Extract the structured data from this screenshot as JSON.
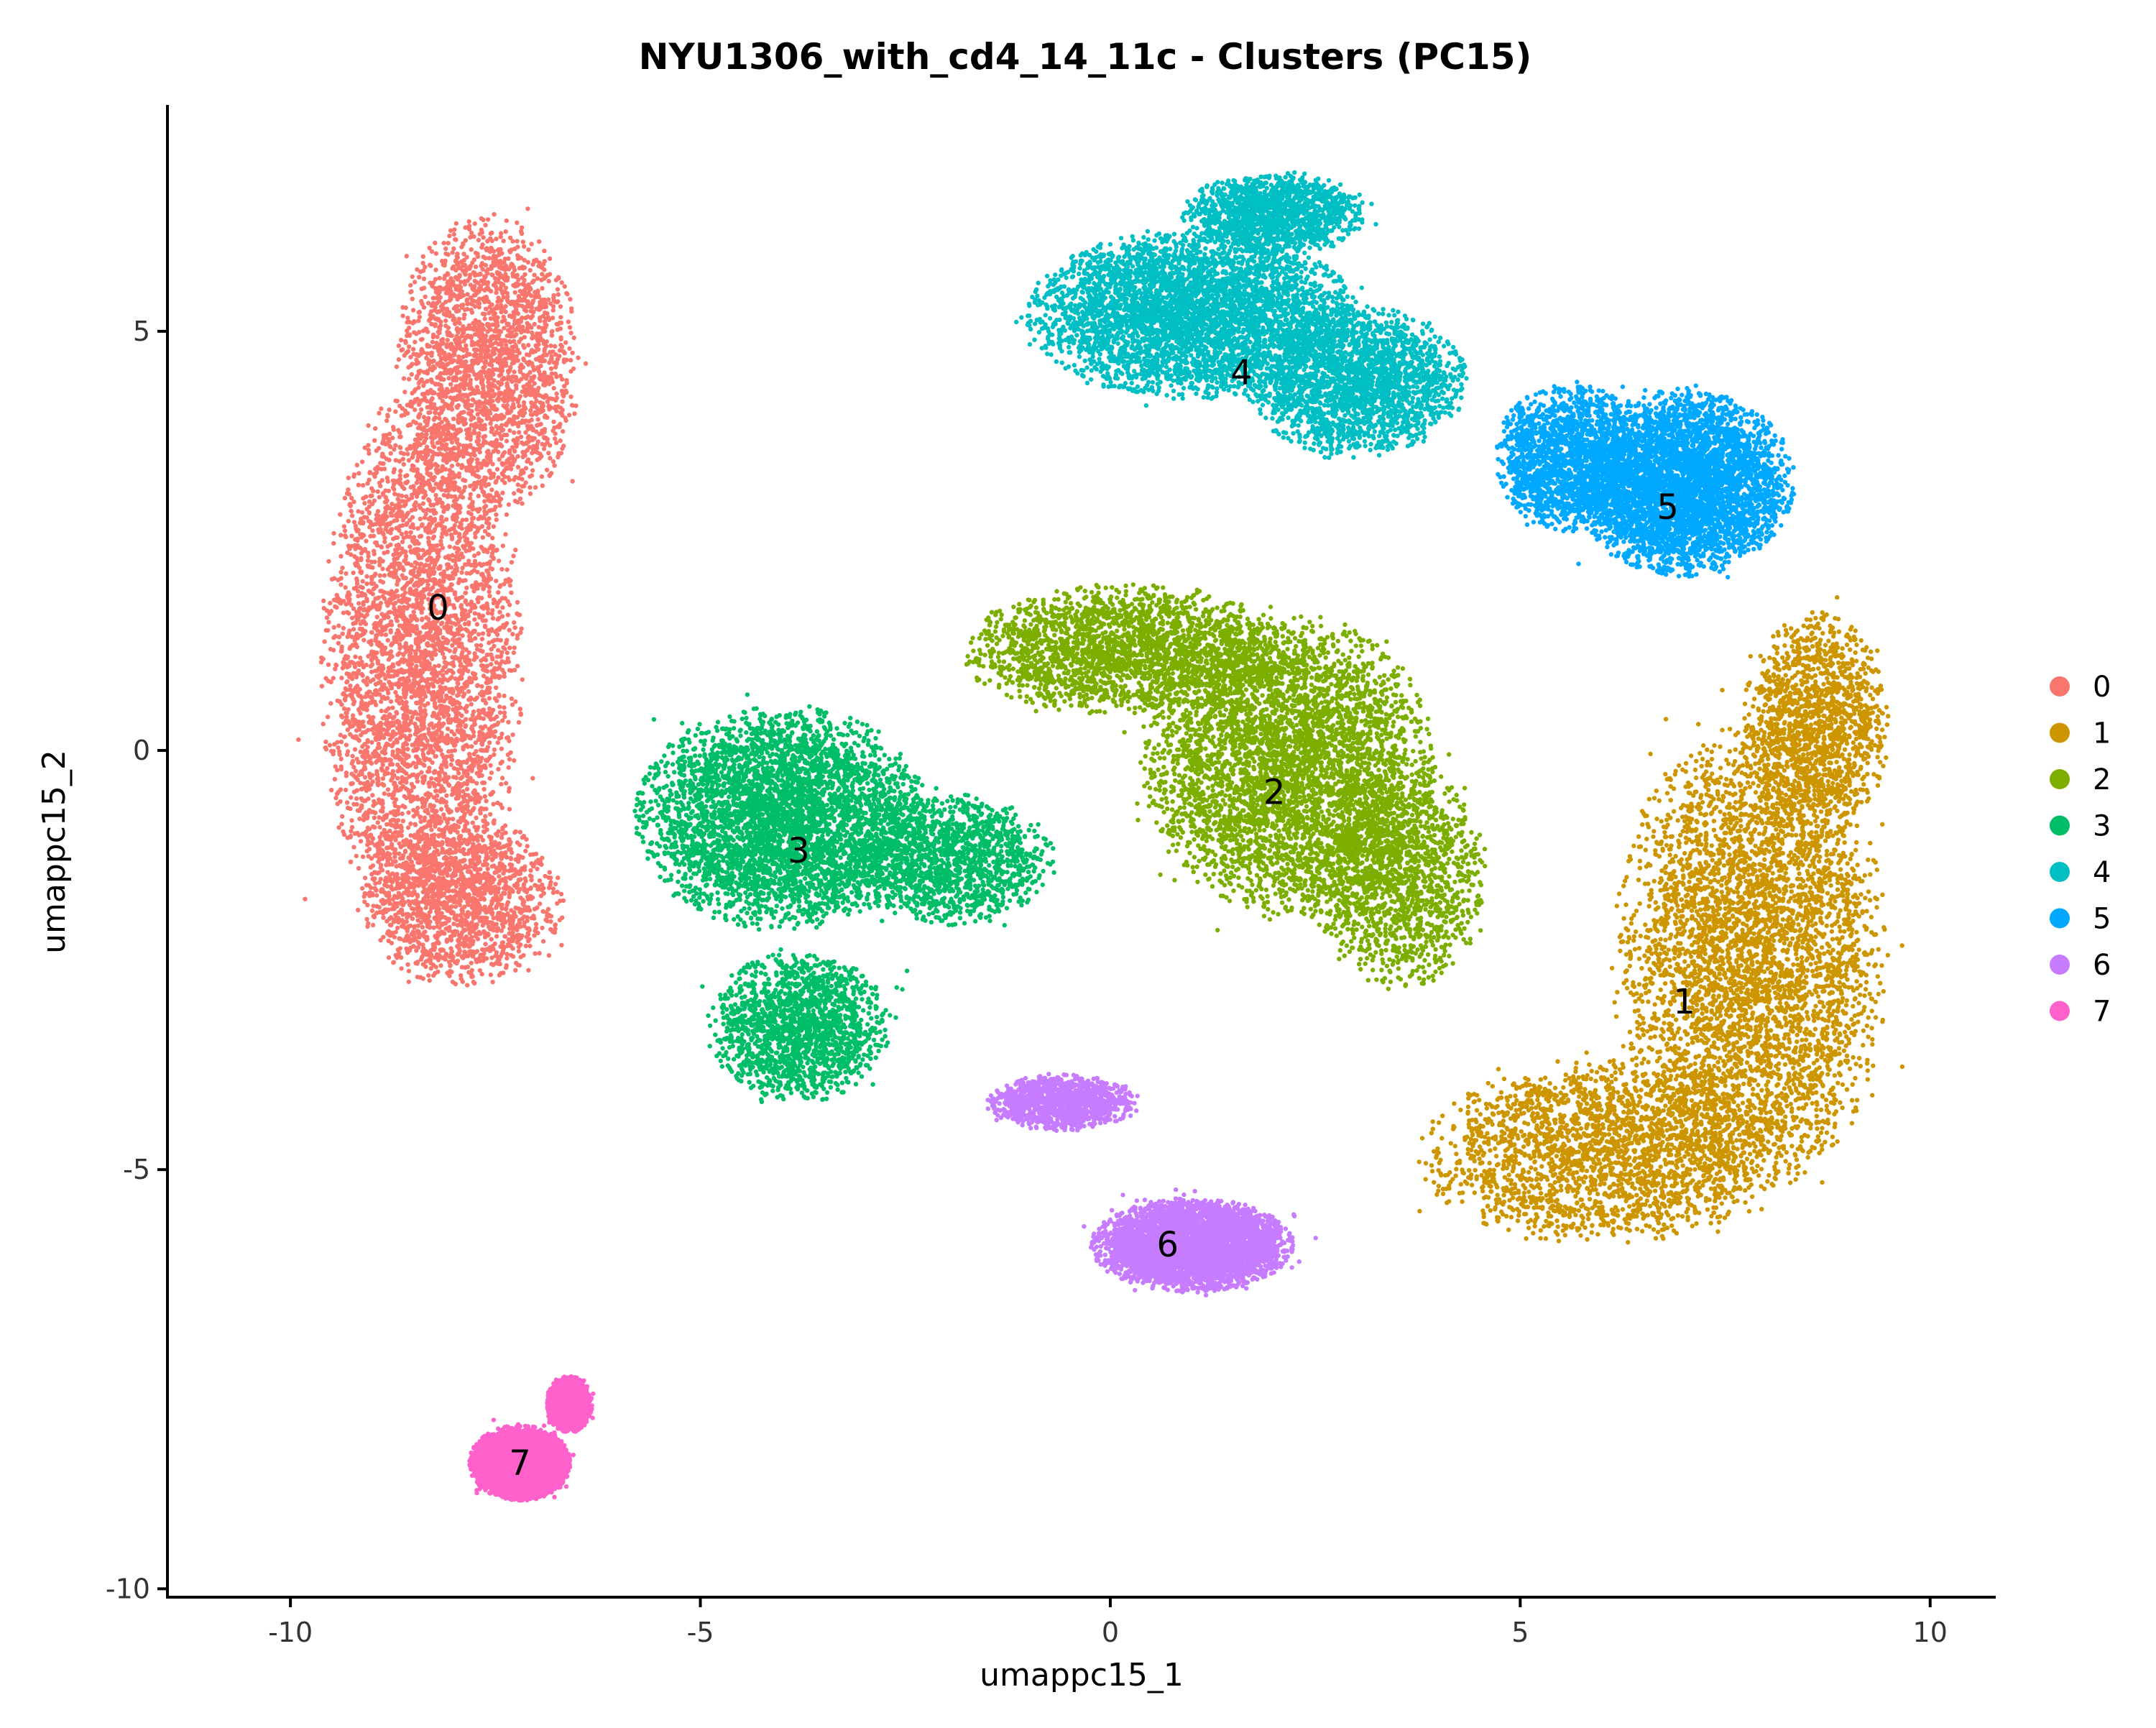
{
  "chart_data": {
    "type": "scatter",
    "title": "NYU1306_with_cd4_14_11c - Clusters (PC15)",
    "xlabel": "umappc15_1",
    "ylabel": "umappc15_2",
    "xlim": [
      -11.5,
      10.8
    ],
    "ylim": [
      -10.1,
      7.7
    ],
    "xticks": [
      -10,
      -5,
      0,
      5,
      10
    ],
    "yticks": [
      -10,
      -5,
      0,
      5
    ],
    "xtick_labels": [
      "-10",
      "-5",
      "0",
      "5",
      "10"
    ],
    "ytick_labels": [
      "-10",
      "-5",
      "0",
      "5"
    ],
    "grid": false,
    "legend_position": "right",
    "series": [
      {
        "name": "0",
        "color": "#F8766D",
        "label_at": [
          -8.2,
          1.7
        ],
        "blobs": [
          [
            -8.4,
            1.0,
            1.1,
            3.0,
            1.0
          ],
          [
            -7.6,
            4.6,
            1.0,
            1.6,
            0.55
          ],
          [
            -7.9,
            -1.8,
            1.1,
            0.9,
            0.35
          ]
        ]
      },
      {
        "name": "1",
        "color": "#CD9600",
        "label_at": [
          7.0,
          -3.0
        ],
        "blobs": [
          [
            7.8,
            -2.5,
            1.5,
            2.5,
            1.0
          ],
          [
            6.0,
            -4.8,
            2.0,
            1.0,
            0.55
          ],
          [
            8.6,
            0.3,
            0.8,
            1.2,
            0.35
          ]
        ]
      },
      {
        "name": "2",
        "color": "#7CAE00",
        "label_at": [
          2.0,
          -0.5
        ],
        "blobs": [
          [
            2.2,
            -0.2,
            1.6,
            1.6,
            1.0
          ],
          [
            0.2,
            1.2,
            1.8,
            0.7,
            0.55
          ],
          [
            3.5,
            -1.5,
            1.0,
            1.2,
            0.35
          ]
        ]
      },
      {
        "name": "3",
        "color": "#00BE67",
        "label_at": [
          -3.8,
          -1.2
        ],
        "blobs": [
          [
            -4.0,
            -0.8,
            1.6,
            1.2,
            1.0
          ],
          [
            -3.8,
            -3.3,
            1.0,
            0.8,
            0.4
          ],
          [
            -2.0,
            -1.3,
            1.2,
            0.7,
            0.35
          ]
        ]
      },
      {
        "name": "4",
        "color": "#00BFC4",
        "label_at": [
          1.6,
          4.5
        ],
        "blobs": [
          [
            1.0,
            5.2,
            1.8,
            0.9,
            1.0
          ],
          [
            3.0,
            4.4,
            1.2,
            0.8,
            0.55
          ],
          [
            2.0,
            6.4,
            1.0,
            0.45,
            0.35
          ]
        ]
      },
      {
        "name": "5",
        "color": "#00A9FF",
        "label_at": [
          6.8,
          2.9
        ],
        "blobs": [
          [
            7.0,
            3.2,
            1.2,
            1.0,
            1.0
          ],
          [
            5.6,
            3.5,
            0.8,
            0.8,
            0.4
          ]
        ]
      },
      {
        "name": "6",
        "color": "#C77CFF",
        "label_at": [
          0.7,
          -5.9
        ],
        "blobs": [
          [
            1.0,
            -5.9,
            1.1,
            0.5,
            1.0
          ],
          [
            -0.6,
            -4.2,
            0.8,
            0.3,
            0.3
          ]
        ]
      },
      {
        "name": "7",
        "color": "#FF61CC",
        "label_at": [
          -7.2,
          -8.5
        ],
        "blobs": [
          [
            -7.2,
            -8.5,
            0.55,
            0.4,
            1.0
          ],
          [
            -6.6,
            -7.8,
            0.25,
            0.3,
            0.4
          ]
        ]
      }
    ]
  }
}
